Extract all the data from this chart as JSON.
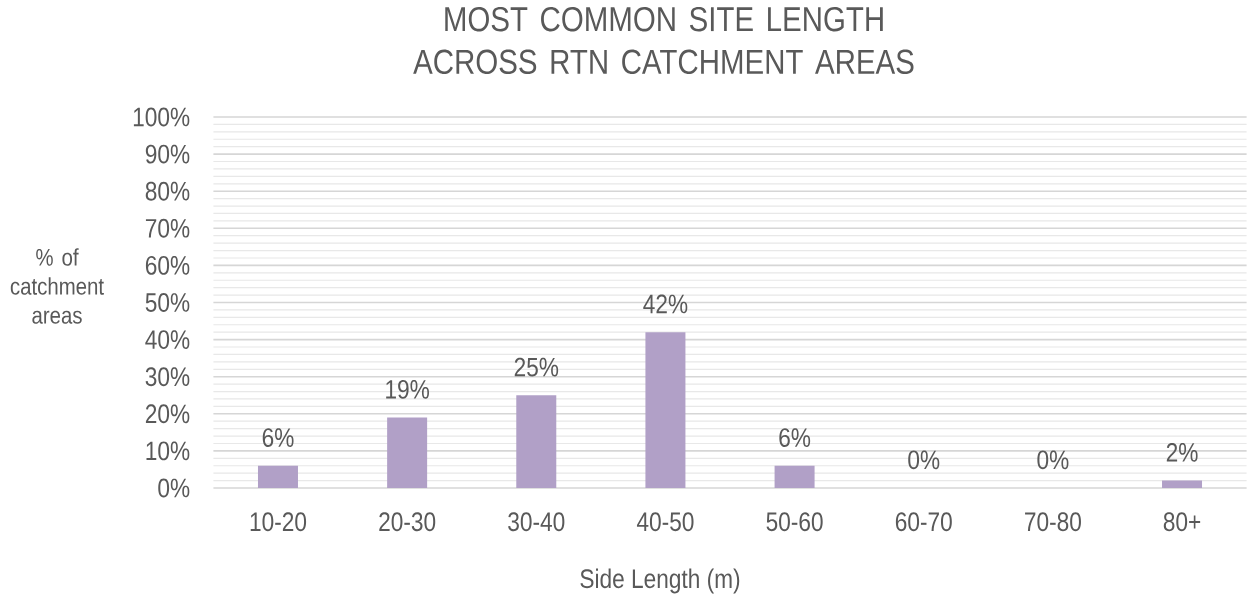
{
  "chart_data": {
    "type": "bar",
    "title": "MOST COMMON SITE LENGTH ACROSS RTN CATCHMENT AREAS",
    "xlabel": "Side Length (m)",
    "ylabel": "% of catchment areas",
    "categories": [
      "10-20",
      "20-30",
      "30-40",
      "40-50",
      "50-60",
      "60-70",
      "70-80",
      "80+"
    ],
    "values": [
      6,
      19,
      25,
      42,
      6,
      0,
      0,
      2
    ],
    "value_labels": [
      "6%",
      "19%",
      "25%",
      "42%",
      "6%",
      "0%",
      "0%",
      "2%"
    ],
    "color": "#b1a0c7",
    "ylim": [
      0,
      100
    ],
    "yticks": [
      {
        "value": 0,
        "label": "0%"
      },
      {
        "value": 10,
        "label": "10%"
      },
      {
        "value": 20,
        "label": "20%"
      },
      {
        "value": 30,
        "label": "30%"
      },
      {
        "value": 40,
        "label": "40%"
      },
      {
        "value": 50,
        "label": "50%"
      },
      {
        "value": 60,
        "label": "60%"
      },
      {
        "value": 70,
        "label": "70%"
      },
      {
        "value": 80,
        "label": "80%"
      },
      {
        "value": 90,
        "label": "90%"
      },
      {
        "value": 100,
        "label": "100%"
      }
    ],
    "grid": "y"
  }
}
